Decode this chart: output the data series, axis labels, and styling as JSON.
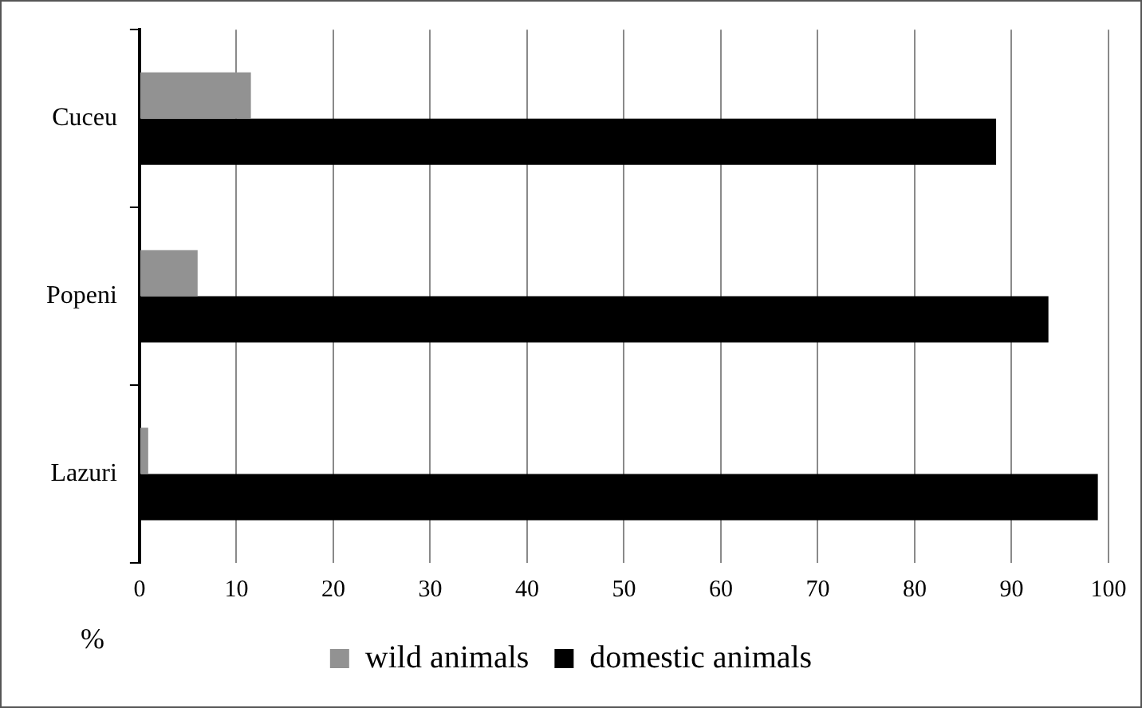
{
  "chart_data": {
    "type": "bar",
    "orientation": "horizontal",
    "xlabel": "%",
    "categories": [
      "Cuceu",
      "Popeni",
      "Lazuri"
    ],
    "series": [
      {
        "name": "wild animals",
        "color": "#929292",
        "values": [
          11.5,
          6.0,
          0.9
        ]
      },
      {
        "name": "domestic animals",
        "color": "#000000",
        "values": [
          88.4,
          93.8,
          98.9
        ]
      }
    ],
    "xlim": [
      0,
      100
    ],
    "xticks": [
      0,
      10,
      20,
      30,
      40,
      50,
      60,
      70,
      80,
      90,
      100
    ],
    "grid": "x",
    "legend": "bottom"
  }
}
